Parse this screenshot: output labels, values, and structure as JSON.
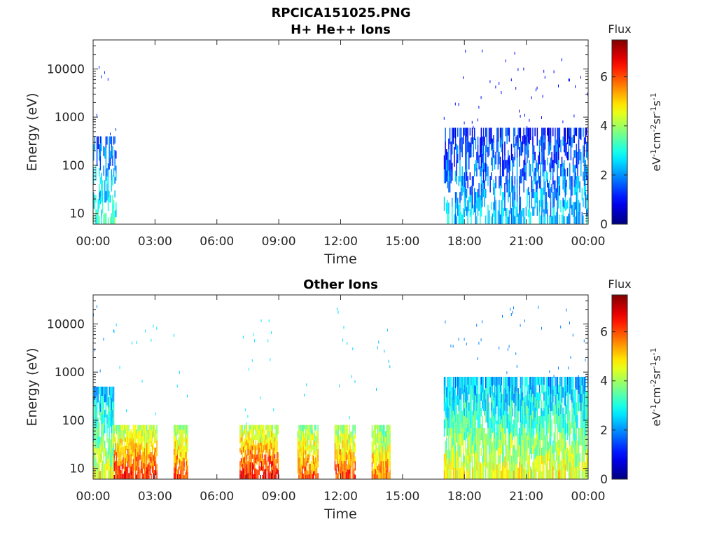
{
  "figure_title": "RPCICA151025.PNG",
  "chart_data": [
    {
      "type": "heatmap",
      "title": "H+ He++ Ions",
      "xlabel": "Time",
      "ylabel": "Energy (eV)",
      "x_ticks": [
        "00:00",
        "03:00",
        "06:00",
        "09:00",
        "12:00",
        "15:00",
        "18:00",
        "21:00",
        "00:00"
      ],
      "x_range_hours": [
        0,
        24
      ],
      "y_scale": "log",
      "y_ticks": [
        "10",
        "100",
        "1000",
        "10000"
      ],
      "y_range": [
        6,
        40000
      ],
      "colorbar": {
        "title": "Flux",
        "unit": "eV^-1 cm^-2 sr^-1 s^-1",
        "ticks": [
          "0",
          "2",
          "4",
          "6"
        ],
        "range": [
          0,
          7.5
        ],
        "colormap": "jet"
      },
      "active_intervals": [
        {
          "start_hr": 0.0,
          "end_hr": 1.1,
          "emin_ev": 6,
          "emax_ev": 400,
          "level": 2.8
        },
        {
          "start_hr": 17.0,
          "end_hr": 24.0,
          "emin_ev": 6,
          "emax_ev": 600,
          "level": 2.2
        }
      ]
    },
    {
      "type": "heatmap",
      "title": "Other Ions",
      "xlabel": "Time",
      "ylabel": "Energy (eV)",
      "x_ticks": [
        "00:00",
        "03:00",
        "06:00",
        "09:00",
        "12:00",
        "15:00",
        "18:00",
        "21:00",
        "00:00"
      ],
      "x_range_hours": [
        0,
        24
      ],
      "y_scale": "log",
      "y_ticks": [
        "10",
        "100",
        "1000",
        "10000"
      ],
      "y_range": [
        6,
        40000
      ],
      "colorbar": {
        "title": "Flux",
        "unit": "eV^-1 cm^-2 sr^-1 s^-1",
        "ticks": [
          "0",
          "2",
          "4",
          "6"
        ],
        "range": [
          0,
          7.5
        ],
        "colormap": "jet"
      },
      "active_intervals": [
        {
          "start_hr": 0.0,
          "end_hr": 1.0,
          "emin_ev": 6,
          "emax_ev": 500,
          "level": 4.2
        },
        {
          "start_hr": 1.0,
          "end_hr": 3.1,
          "emin_ev": 6,
          "emax_ev": 80,
          "level": 5.8
        },
        {
          "start_hr": 3.9,
          "end_hr": 4.6,
          "emin_ev": 6,
          "emax_ev": 80,
          "level": 5.6
        },
        {
          "start_hr": 7.1,
          "end_hr": 9.0,
          "emin_ev": 6,
          "emax_ev": 80,
          "level": 6.0
        },
        {
          "start_hr": 9.9,
          "end_hr": 10.9,
          "emin_ev": 6,
          "emax_ev": 80,
          "level": 5.4
        },
        {
          "start_hr": 11.7,
          "end_hr": 12.7,
          "emin_ev": 6,
          "emax_ev": 80,
          "level": 5.6
        },
        {
          "start_hr": 13.5,
          "end_hr": 14.4,
          "emin_ev": 6,
          "emax_ev": 80,
          "level": 5.2
        },
        {
          "start_hr": 17.0,
          "end_hr": 24.0,
          "emin_ev": 6,
          "emax_ev": 800,
          "level": 4.2
        }
      ]
    }
  ]
}
